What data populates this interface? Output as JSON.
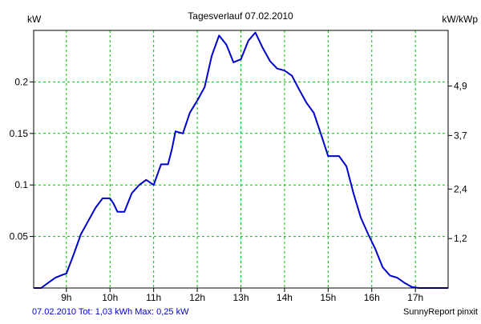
{
  "colors": {
    "background": "#ffffff",
    "frame": "#000000",
    "grid": "#00c000",
    "line": "#0000cc",
    "footer_left": "#0000cc",
    "text": "#000000"
  },
  "footer": {
    "left": "07.02.2010 Tot: 1,03 kWh Max: 0,25 kW",
    "right": "SunnyReport pinxit"
  },
  "chart_data": {
    "type": "line",
    "title": "Tagesverlauf 07.02.2010",
    "ylabel": "kW",
    "ylabel_right": "kW/kWp",
    "xlim": [
      8.25,
      17.75
    ],
    "ylim": [
      0,
      0.25
    ],
    "ylim_right": [
      0,
      6.25
    ],
    "grid": true,
    "x_ticks": [
      {
        "value": 9,
        "label": "9h"
      },
      {
        "value": 10,
        "label": "10h"
      },
      {
        "value": 11,
        "label": "11h"
      },
      {
        "value": 12,
        "label": "12h"
      },
      {
        "value": 13,
        "label": "13h"
      },
      {
        "value": 14,
        "label": "14h"
      },
      {
        "value": 15,
        "label": "15h"
      },
      {
        "value": 16,
        "label": "16h"
      },
      {
        "value": 17,
        "label": "17h"
      }
    ],
    "y_ticks": [
      {
        "value": 0.05,
        "label": "0.05"
      },
      {
        "value": 0.1,
        "label": "0.1"
      },
      {
        "value": 0.15,
        "label": "0.15"
      },
      {
        "value": 0.2,
        "label": "0.2"
      }
    ],
    "y_ticks_right": [
      {
        "value": 1.2,
        "label": "1,2"
      },
      {
        "value": 2.4,
        "label": "2,4"
      },
      {
        "value": 3.7,
        "label": "3,7"
      },
      {
        "value": 4.9,
        "label": "4,9"
      }
    ],
    "series": [
      {
        "x": [
          8.25,
          8.42,
          8.58,
          8.75,
          8.92,
          9.0,
          9.17,
          9.33,
          9.5,
          9.67,
          9.83,
          9.92,
          10.0,
          10.08,
          10.17,
          10.33,
          10.5,
          10.67,
          10.83,
          11.0,
          11.17,
          11.33,
          11.42,
          11.5,
          11.67,
          11.83,
          12.0,
          12.17,
          12.33,
          12.5,
          12.67,
          12.83,
          13.0,
          13.17,
          13.33,
          13.5,
          13.67,
          13.83,
          14.0,
          14.17,
          14.33,
          14.5,
          14.67,
          14.83,
          15.0,
          15.08,
          15.25,
          15.42,
          15.58,
          15.75,
          15.92,
          16.08,
          16.25,
          16.42,
          16.58,
          16.75,
          16.92,
          17.08,
          17.25,
          17.5,
          17.75
        ],
        "y": [
          0.0,
          0.0,
          0.005,
          0.01,
          0.013,
          0.014,
          0.033,
          0.052,
          0.065,
          0.078,
          0.087,
          0.087,
          0.087,
          0.082,
          0.074,
          0.074,
          0.092,
          0.1,
          0.105,
          0.1,
          0.12,
          0.12,
          0.135,
          0.152,
          0.15,
          0.17,
          0.182,
          0.195,
          0.225,
          0.245,
          0.236,
          0.219,
          0.222,
          0.24,
          0.248,
          0.233,
          0.22,
          0.213,
          0.211,
          0.206,
          0.193,
          0.18,
          0.17,
          0.15,
          0.128,
          0.128,
          0.128,
          0.118,
          0.092,
          0.068,
          0.052,
          0.038,
          0.02,
          0.012,
          0.01,
          0.005,
          0.001,
          0.0,
          0.0,
          0.0,
          0.0
        ]
      }
    ]
  }
}
